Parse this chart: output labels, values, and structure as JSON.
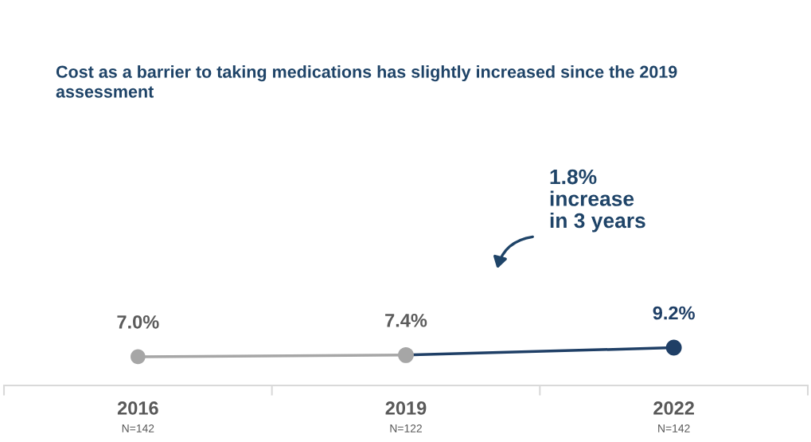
{
  "chart_data": {
    "type": "line",
    "title": "Cost as a barrier to taking medications has slightly increased since the 2019 assessment",
    "categories": [
      "2016\nN=142",
      "2019\nN=122",
      "2022\nN=142"
    ],
    "series": [
      {
        "color": "#a6a6a6",
        "values": [
          7.0,
          7.4,
          null
        ],
        "value_labels": [
          "7.0%",
          "7.4%",
          null
        ]
      },
      {
        "color": "#1f3f66",
        "values": [
          null,
          7.4,
          9.2
        ],
        "colors": [
          null,
          "#a6a6a6",
          "#1f3f66"
        ],
        "value_labels": [
          null,
          null,
          "9.2%"
        ]
      }
    ],
    "tick_labels": "x",
    "marker": "circle",
    "line_style": "solid",
    "grid": false,
    "legend": false,
    "annotations": [
      "1.8%\nincrease\nin 3 years"
    ]
  }
}
